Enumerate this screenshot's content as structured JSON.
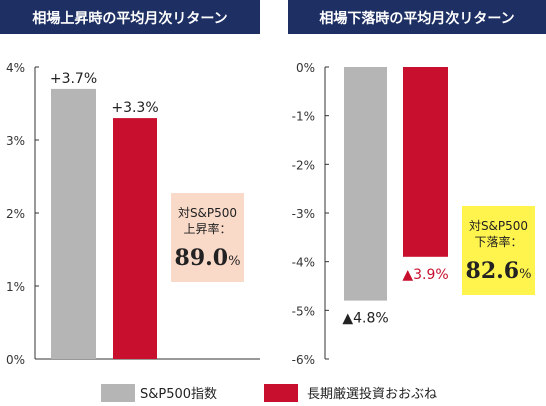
{
  "chart_data": [
    {
      "type": "bar",
      "title": "相場上昇時の平均月次リターン",
      "ylim": [
        0,
        4
      ],
      "yticks": [
        "0%",
        "1%",
        "2%",
        "3%",
        "4%"
      ],
      "grid": false,
      "series": [
        {
          "name": "S&P500指数",
          "value": 3.7,
          "label": "+3.7%",
          "color": "#b5b5b5"
        },
        {
          "name": "長期厳選投資おおぶね",
          "value": 3.3,
          "label": "+3.3%",
          "color": "#c8102e"
        }
      ],
      "annotation": {
        "line1": "対S&P500",
        "line2": "上昇率：",
        "value": "89.0",
        "unit": "%",
        "bg": "#f9d9c8"
      }
    },
    {
      "type": "bar",
      "title": "相場下落時の平均月次リターン",
      "ylim": [
        -6,
        0
      ],
      "yticks": [
        "0%",
        "-1%",
        "-2%",
        "-3%",
        "-4%",
        "-5%",
        "-6%"
      ],
      "grid": false,
      "series": [
        {
          "name": "S&P500指数",
          "value": -4.8,
          "label": "▲4.8%",
          "color": "#b5b5b5"
        },
        {
          "name": "長期厳選投資おおぶね",
          "value": -3.9,
          "label": "▲3.9%",
          "color": "#c8102e"
        }
      ],
      "annotation": {
        "line1": "対S&P500",
        "line2": "下落率：",
        "value": "82.6",
        "unit": "%",
        "bg": "#fff34d"
      }
    }
  ],
  "legend": [
    {
      "label": "S&P500指数",
      "color": "#b5b5b5"
    },
    {
      "label": "長期厳選投資おおぶね",
      "color": "#c8102e"
    }
  ],
  "colors": {
    "title_bg": "#1d2f63",
    "title_text": "#ffffff",
    "axis": "#333333",
    "series1_label": "#222222",
    "series2_label": "#c8102e"
  }
}
